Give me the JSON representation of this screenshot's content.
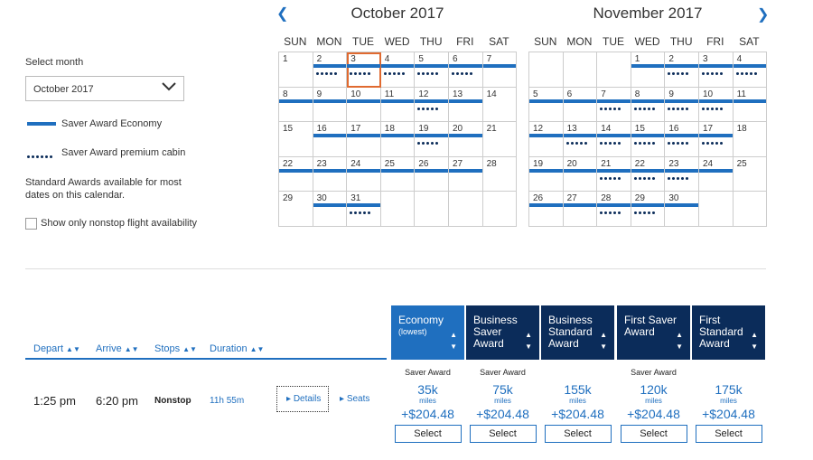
{
  "filters": {
    "select_month_label": "Select month",
    "selected_month": "October 2017",
    "legend_saver_economy": "Saver Award Economy",
    "legend_saver_premium": "Saver Award premium cabin",
    "standard_note": "Standard Awards available for most dates on this calendar.",
    "nonstop_label": "Show only nonstop flight availability"
  },
  "calendar": {
    "days_of_week": [
      "SUN",
      "MON",
      "TUE",
      "WED",
      "THU",
      "FRI",
      "SAT"
    ],
    "months": [
      {
        "title": "October 2017",
        "cells": [
          {
            "d": "1",
            "bar": false,
            "dots": false
          },
          {
            "d": "2",
            "bar": true,
            "dots": true
          },
          {
            "d": "3",
            "bar": true,
            "dots": true,
            "selected": true
          },
          {
            "d": "4",
            "bar": true,
            "dots": true
          },
          {
            "d": "5",
            "bar": true,
            "dots": true
          },
          {
            "d": "6",
            "bar": true,
            "dots": true
          },
          {
            "d": "7",
            "bar": true,
            "dots": false
          },
          {
            "d": "8",
            "bar": true,
            "dots": false
          },
          {
            "d": "9",
            "bar": true,
            "dots": false
          },
          {
            "d": "10",
            "bar": true,
            "dots": false
          },
          {
            "d": "11",
            "bar": true,
            "dots": false
          },
          {
            "d": "12",
            "bar": true,
            "dots": true
          },
          {
            "d": "13",
            "bar": true,
            "dots": false
          },
          {
            "d": "14",
            "bar": false,
            "dots": false
          },
          {
            "d": "15",
            "bar": false,
            "dots": false
          },
          {
            "d": "16",
            "bar": true,
            "dots": false
          },
          {
            "d": "17",
            "bar": true,
            "dots": false
          },
          {
            "d": "18",
            "bar": true,
            "dots": false
          },
          {
            "d": "19",
            "bar": true,
            "dots": true
          },
          {
            "d": "20",
            "bar": true,
            "dots": false
          },
          {
            "d": "21",
            "bar": false,
            "dots": false
          },
          {
            "d": "22",
            "bar": true,
            "dots": false
          },
          {
            "d": "23",
            "bar": true,
            "dots": false
          },
          {
            "d": "24",
            "bar": true,
            "dots": false
          },
          {
            "d": "25",
            "bar": true,
            "dots": false
          },
          {
            "d": "26",
            "bar": true,
            "dots": false
          },
          {
            "d": "27",
            "bar": true,
            "dots": false
          },
          {
            "d": "28",
            "bar": false,
            "dots": false
          },
          {
            "d": "29",
            "bar": false,
            "dots": false
          },
          {
            "d": "30",
            "bar": true,
            "dots": false
          },
          {
            "d": "31",
            "bar": true,
            "dots": true
          },
          {
            "d": "",
            "bar": false,
            "dots": false
          },
          {
            "d": "",
            "bar": false,
            "dots": false
          },
          {
            "d": "",
            "bar": false,
            "dots": false
          },
          {
            "d": "",
            "bar": false,
            "dots": false
          }
        ]
      },
      {
        "title": "November 2017",
        "cells": [
          {
            "d": "",
            "bar": false,
            "dots": false
          },
          {
            "d": "",
            "bar": false,
            "dots": false
          },
          {
            "d": "",
            "bar": false,
            "dots": false
          },
          {
            "d": "1",
            "bar": true,
            "dots": false
          },
          {
            "d": "2",
            "bar": true,
            "dots": true
          },
          {
            "d": "3",
            "bar": true,
            "dots": true
          },
          {
            "d": "4",
            "bar": true,
            "dots": true
          },
          {
            "d": "5",
            "bar": true,
            "dots": false
          },
          {
            "d": "6",
            "bar": true,
            "dots": false
          },
          {
            "d": "7",
            "bar": true,
            "dots": true
          },
          {
            "d": "8",
            "bar": true,
            "dots": true
          },
          {
            "d": "9",
            "bar": true,
            "dots": true
          },
          {
            "d": "10",
            "bar": true,
            "dots": true
          },
          {
            "d": "11",
            "bar": true,
            "dots": false
          },
          {
            "d": "12",
            "bar": true,
            "dots": false
          },
          {
            "d": "13",
            "bar": true,
            "dots": true
          },
          {
            "d": "14",
            "bar": true,
            "dots": true
          },
          {
            "d": "15",
            "bar": true,
            "dots": true
          },
          {
            "d": "16",
            "bar": true,
            "dots": true
          },
          {
            "d": "17",
            "bar": true,
            "dots": true
          },
          {
            "d": "18",
            "bar": false,
            "dots": false
          },
          {
            "d": "19",
            "bar": true,
            "dots": false
          },
          {
            "d": "20",
            "bar": true,
            "dots": false
          },
          {
            "d": "21",
            "bar": true,
            "dots": true
          },
          {
            "d": "22",
            "bar": true,
            "dots": true
          },
          {
            "d": "23",
            "bar": true,
            "dots": true
          },
          {
            "d": "24",
            "bar": true,
            "dots": false
          },
          {
            "d": "25",
            "bar": false,
            "dots": false
          },
          {
            "d": "26",
            "bar": true,
            "dots": false
          },
          {
            "d": "27",
            "bar": true,
            "dots": false
          },
          {
            "d": "28",
            "bar": true,
            "dots": true
          },
          {
            "d": "29",
            "bar": true,
            "dots": true
          },
          {
            "d": "30",
            "bar": true,
            "dots": false
          },
          {
            "d": "",
            "bar": false,
            "dots": false
          },
          {
            "d": "",
            "bar": false,
            "dots": false
          }
        ]
      }
    ]
  },
  "results": {
    "columns": {
      "depart": "Depart",
      "arrive": "Arrive",
      "stops": "Stops",
      "duration": "Duration"
    },
    "cabins": [
      {
        "line1": "Economy",
        "line2": "(lowest)",
        "line3": ""
      },
      {
        "line1": "Business",
        "line2": "Saver",
        "line3": "Award"
      },
      {
        "line1": "Business",
        "line2": "Standard",
        "line3": "Award"
      },
      {
        "line1": "First Saver",
        "line2": "Award",
        "line3": ""
      },
      {
        "line1": "First",
        "line2": "Standard",
        "line3": "Award"
      }
    ],
    "flight": {
      "depart": "1:25 pm",
      "arrive": "6:20 pm",
      "stops": "Nonstop",
      "duration": "11h 55m",
      "details_label": "Details",
      "seats_label": "Seats",
      "fares": [
        {
          "tag": "Saver Award",
          "miles": "35k",
          "unit": "miles",
          "tax": "+$204.48",
          "select": "Select"
        },
        {
          "tag": "Saver Award",
          "miles": "75k",
          "unit": "miles",
          "tax": "+$204.48",
          "select": "Select"
        },
        {
          "tag": "",
          "miles": "155k",
          "unit": "miles",
          "tax": "+$204.48",
          "select": "Select"
        },
        {
          "tag": "Saver Award",
          "miles": "120k",
          "unit": "miles",
          "tax": "+$204.48",
          "select": "Select"
        },
        {
          "tag": "",
          "miles": "175k",
          "unit": "miles",
          "tax": "+$204.48",
          "select": "Select"
        }
      ]
    }
  },
  "colors": {
    "accent": "#1f6fbf",
    "navy": "#0b2c5a",
    "selected_outline": "#e06a30"
  }
}
